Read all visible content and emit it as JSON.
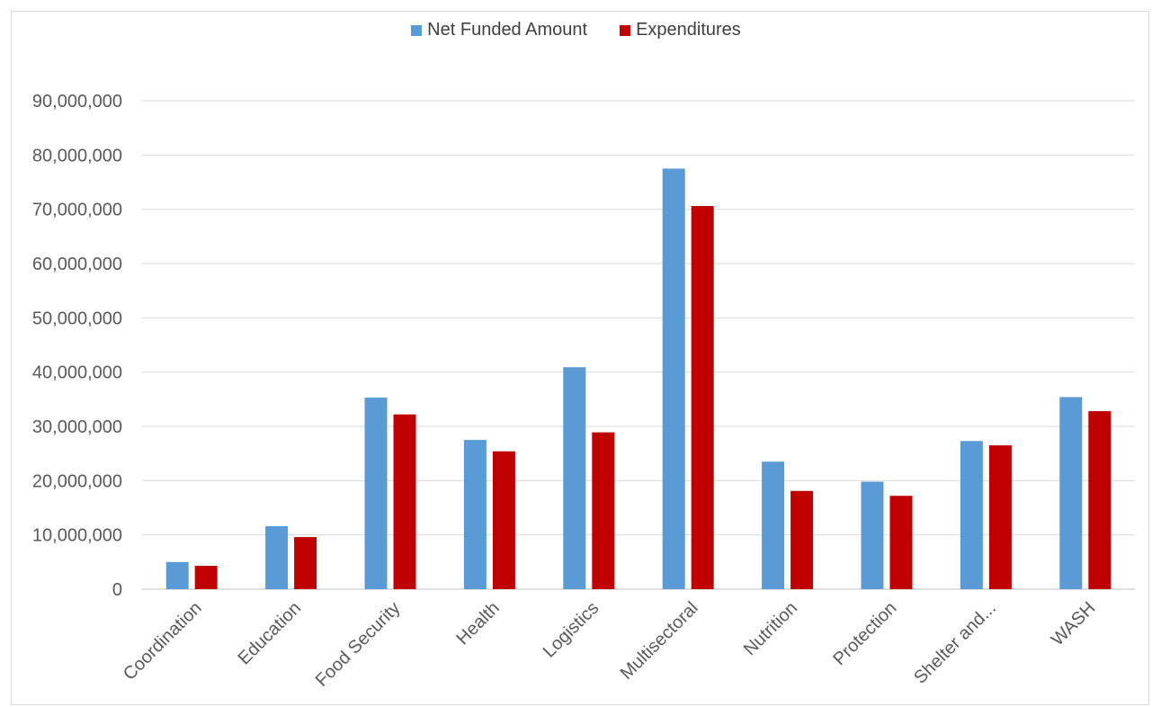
{
  "chart_data": {
    "type": "bar",
    "title": "",
    "xlabel": "",
    "ylabel": "",
    "ylim": [
      0,
      90000000
    ],
    "yticks": [
      0,
      10000000,
      20000000,
      30000000,
      40000000,
      50000000,
      60000000,
      70000000,
      80000000,
      90000000
    ],
    "ytick_labels": [
      "0",
      "10,000,000",
      "20,000,000",
      "30,000,000",
      "40,000,000",
      "50,000,000",
      "60,000,000",
      "70,000,000",
      "80,000,000",
      "90,000,000"
    ],
    "categories": [
      "Coordination",
      "Education",
      "Food Security",
      "Health",
      "Logistics",
      "Multisectoral",
      "Nutrition",
      "Protection",
      "Shelter and...",
      "WASH"
    ],
    "series": [
      {
        "name": "Net Funded Amount",
        "color": "#5b9bd5",
        "values": [
          5000000,
          11600000,
          35300000,
          27500000,
          40900000,
          77500000,
          23500000,
          19800000,
          27300000,
          35400000
        ]
      },
      {
        "name": "Expenditures",
        "color": "#c00000",
        "values": [
          4300000,
          9600000,
          32200000,
          25400000,
          28900000,
          70600000,
          18100000,
          17200000,
          26500000,
          32800000
        ]
      }
    ],
    "grid": true,
    "legend_position": "top-center"
  }
}
